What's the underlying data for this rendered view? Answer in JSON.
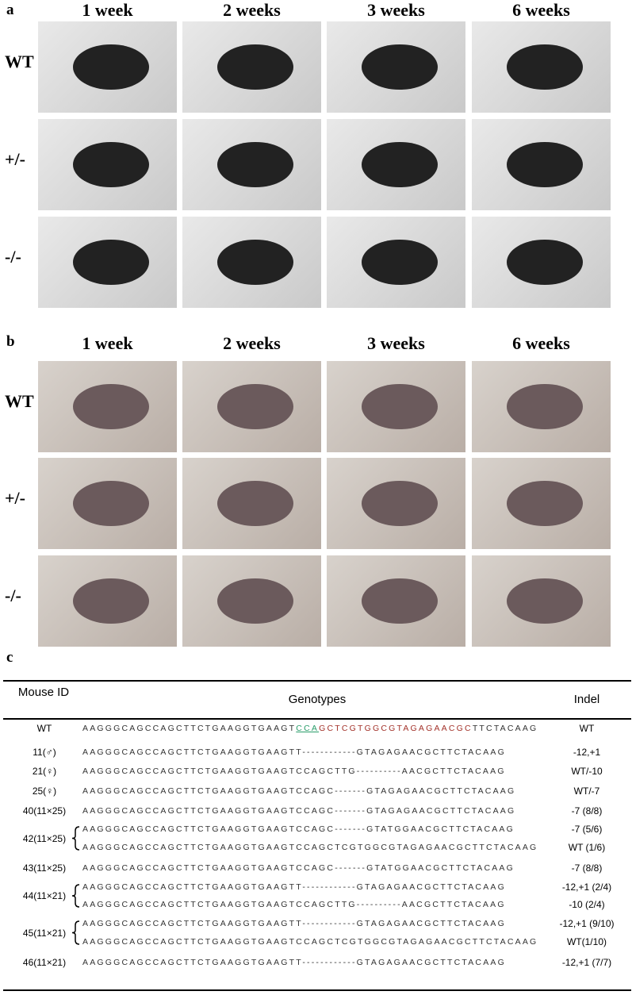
{
  "panels": [
    {
      "label": "a",
      "columns": [
        "1 week",
        "2 weeks",
        "3 weeks",
        "6 weeks"
      ],
      "rows": [
        "WT",
        "+/-",
        "-/-"
      ]
    },
    {
      "label": "b",
      "columns": [
        "1 week",
        "2 weeks",
        "3 weeks",
        "6 weeks"
      ],
      "rows": [
        "WT",
        "+/-",
        "-/-"
      ]
    }
  ],
  "table": {
    "label": "c",
    "headers": [
      "Mouse ID",
      "Genotypes",
      "Indel"
    ],
    "rows": [
      {
        "id": "WT",
        "sequences": [
          [
            {
              "text": "AAGGGCAGCCAGCTTCTGAAGGTGAAGT",
              "style": "plain"
            },
            {
              "text": "CCA",
              "style": "pam"
            },
            {
              "text": "GCTCGTGGCGTAGAGAACGC",
              "style": "target"
            },
            {
              "text": "TTCTACAAG",
              "style": "plain"
            }
          ]
        ],
        "indels": [
          "WT"
        ]
      },
      {
        "id": "11(♂)",
        "sequences": [
          [
            {
              "text": "AAGGGCAGCCAGCTTCTGAAGGTGAAGTT------------GTAGAGAACGCTTCTACAAG",
              "style": "plain"
            }
          ]
        ],
        "indels": [
          "-12,+1"
        ]
      },
      {
        "id": "21(♀)",
        "sequences": [
          [
            {
              "text": "AAGGGCAGCCAGCTTCTGAAGGTGAAGTCCAGCTTG----------AACGCTTCTACAAG",
              "style": "plain"
            }
          ]
        ],
        "indels": [
          "WT/-10"
        ]
      },
      {
        "id": "25(♀)",
        "sequences": [
          [
            {
              "text": "AAGGGCAGCCAGCTTCTGAAGGTGAAGTCCAGC-------GTAGAGAACGCTTCTACAAG",
              "style": "plain"
            }
          ]
        ],
        "indels": [
          "WT/-7"
        ]
      },
      {
        "id": "40(11×25)",
        "sequences": [
          [
            {
              "text": "AAGGGCAGCCAGCTTCTGAAGGTGAAGTCCAGC-------GTAGAGAACGCTTCTACAAG",
              "style": "plain"
            }
          ]
        ],
        "indels": [
          "-7 (8/8)"
        ]
      },
      {
        "id": "42(11×25)",
        "sequences": [
          [
            {
              "text": "AAGGGCAGCCAGCTTCTGAAGGTGAAGTCCAGC-------GTATGGAACGCTTCTACAAG",
              "style": "plain"
            }
          ],
          [
            {
              "text": "AAGGGCAGCCAGCTTCTGAAGGTGAAGTCCAGCTCGTGGCGTAGAGAACGCTTCTACAAG",
              "style": "plain"
            }
          ]
        ],
        "indels": [
          "-7 (5/6)",
          "WT (1/6)"
        ]
      },
      {
        "id": "43(11×25)",
        "sequences": [
          [
            {
              "text": "AAGGGCAGCCAGCTTCTGAAGGTGAAGTCCAGC-------GTATGGAACGCTTCTACAAG",
              "style": "plain"
            }
          ]
        ],
        "indels": [
          "-7 (8/8)"
        ]
      },
      {
        "id": "44(11×21)",
        "sequences": [
          [
            {
              "text": "AAGGGCAGCCAGCTTCTGAAGGTGAAGTT------------GTAGAGAACGCTTCTACAAG",
              "style": "plain"
            }
          ],
          [
            {
              "text": "AAGGGCAGCCAGCTTCTGAAGGTGAAGTCCAGCTTG----------AACGCTTCTACAAG",
              "style": "plain"
            }
          ]
        ],
        "indels": [
          "-12,+1 (2/4)",
          "-10 (2/4)"
        ]
      },
      {
        "id": "45(11×21)",
        "sequences": [
          [
            {
              "text": "AAGGGCAGCCAGCTTCTGAAGGTGAAGTT------------GTAGAGAACGCTTCTACAAG",
              "style": "plain"
            }
          ],
          [
            {
              "text": "AAGGGCAGCCAGCTTCTGAAGGTGAAGTCCAGCTCGTGGCGTAGAGAACGCTTCTACAAG",
              "style": "plain"
            }
          ]
        ],
        "indels": [
          "-12,+1 (9/10)",
          "WT(1/10)"
        ]
      },
      {
        "id": "46(11×21)",
        "sequences": [
          [
            {
              "text": "AAGGGCAGCCAGCTTCTGAAGGTGAAGTT------------GTAGAGAACGCTTCTACAAG",
              "style": "plain"
            }
          ]
        ],
        "indels": [
          "-12,+1 (7/7)"
        ]
      }
    ]
  }
}
